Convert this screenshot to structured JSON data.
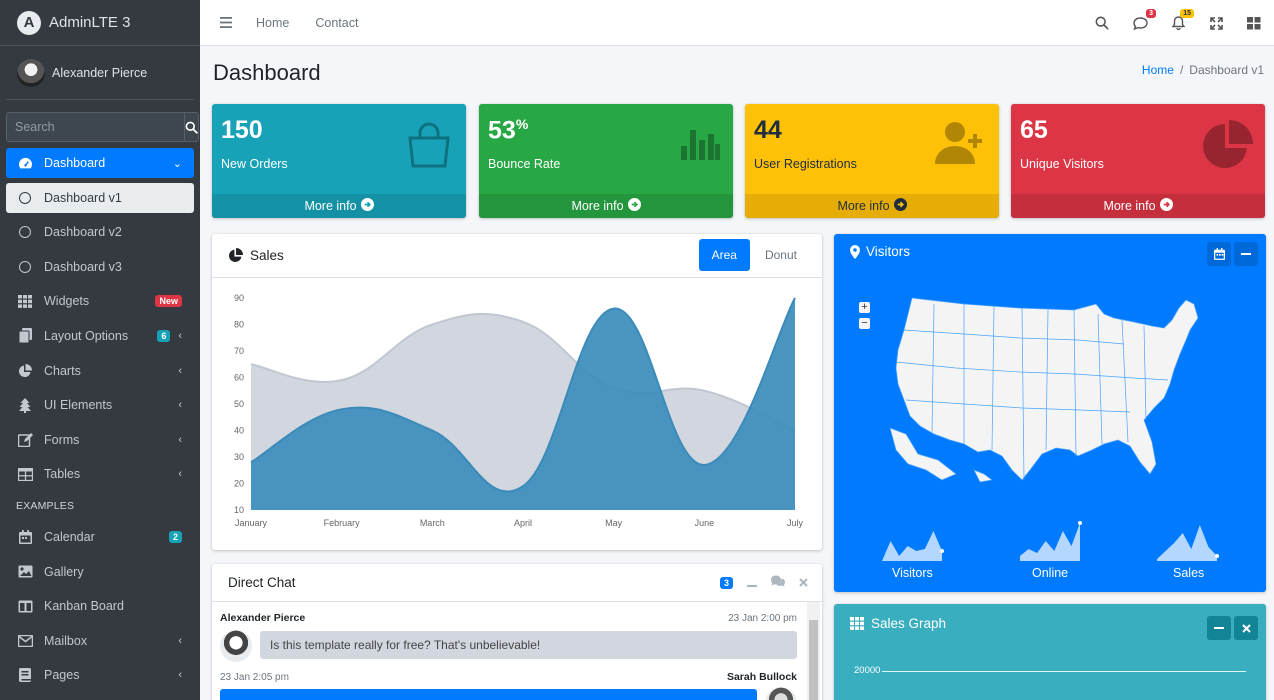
{
  "brand": {
    "name": "AdminLTE 3",
    "logo_letter": "A"
  },
  "user": {
    "name": "Alexander Pierce"
  },
  "search": {
    "placeholder": "Search"
  },
  "nav": {
    "dashboard": "Dashboard",
    "dashboard_v1": "Dashboard v1",
    "dashboard_v2": "Dashboard v2",
    "dashboard_v3": "Dashboard v3",
    "widgets": "Widgets",
    "widgets_badge": "New",
    "layout": "Layout Options",
    "layout_badge": "6",
    "charts": "Charts",
    "ui": "UI Elements",
    "forms": "Forms",
    "tables": "Tables",
    "examples_header": "EXAMPLES",
    "calendar": "Calendar",
    "calendar_badge": "2",
    "gallery": "Gallery",
    "kanban": "Kanban Board",
    "mailbox": "Mailbox",
    "pages": "Pages"
  },
  "topbar": {
    "home": "Home",
    "contact": "Contact",
    "messages_badge": "3",
    "notifications_badge": "15"
  },
  "page": {
    "title": "Dashboard",
    "breadcrumb_home": "Home",
    "breadcrumb_sep": "/",
    "breadcrumb_current": "Dashboard v1"
  },
  "boxes": [
    {
      "value": "150",
      "sup": "",
      "label": "New Orders",
      "more": "More info"
    },
    {
      "value": "53",
      "sup": "%",
      "label": "Bounce Rate",
      "more": "More info"
    },
    {
      "value": "44",
      "sup": "",
      "label": "User Registrations",
      "more": "More info"
    },
    {
      "value": "65",
      "sup": "",
      "label": "Unique Visitors",
      "more": "More info"
    }
  ],
  "sales": {
    "title": "Sales",
    "tab_area": "Area",
    "tab_donut": "Donut"
  },
  "chart_data": {
    "type": "area",
    "categories": [
      "January",
      "February",
      "March",
      "April",
      "May",
      "June",
      "July"
    ],
    "yticks": [
      10,
      20,
      30,
      40,
      50,
      60,
      70,
      80,
      90
    ],
    "ylim": [
      10,
      90
    ],
    "series": [
      {
        "values": [
          65,
          59,
          80,
          81,
          56,
          55,
          40
        ],
        "color": "#d2d6de"
      },
      {
        "values": [
          28,
          48,
          40,
          19,
          86,
          27,
          90
        ],
        "color": "#3c8dbc"
      }
    ]
  },
  "visitors": {
    "title": "Visitors",
    "zoom_in": "+",
    "zoom_out": "−",
    "labels": [
      "Visitors",
      "Online",
      "Sales"
    ]
  },
  "sales_graph": {
    "title": "Sales Graph",
    "ytick": "20000"
  },
  "chat": {
    "title": "Direct Chat",
    "badge": "3",
    "msg1": {
      "name": "Alexander Pierce",
      "time": "23 Jan 2:00 pm",
      "text": "Is this template really for free? That's unbelievable!"
    },
    "msg2": {
      "name": "Sarah Bullock",
      "time": "23 Jan 2:05 pm"
    }
  }
}
